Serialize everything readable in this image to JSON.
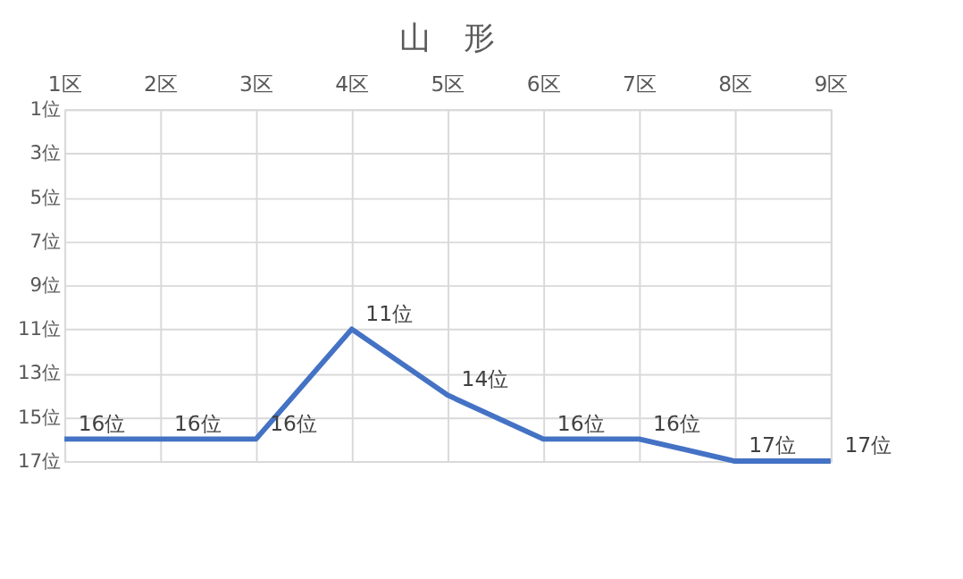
{
  "chart_data": {
    "type": "line",
    "title": "山　形",
    "categories": [
      "1区",
      "2区",
      "3区",
      "4区",
      "5区",
      "6区",
      "7区",
      "8区",
      "9区"
    ],
    "series": [
      {
        "color": "#4472c4",
        "values": [
          16,
          16,
          16,
          11,
          14,
          16,
          16,
          17,
          17
        ],
        "value_labels": [
          "16位",
          "16位",
          "16位",
          "11位",
          "14位",
          "16位",
          "16位",
          "17位",
          "17位"
        ]
      }
    ],
    "ylim": [
      17,
      1
    ],
    "yticks": [
      {
        "value": 1,
        "label": "1位"
      },
      {
        "value": 3,
        "label": "3位"
      },
      {
        "value": 5,
        "label": "5位"
      },
      {
        "value": 7,
        "label": "7位"
      },
      {
        "value": 9,
        "label": "9位"
      },
      {
        "value": 11,
        "label": "11位"
      },
      {
        "value": 13,
        "label": "13位"
      },
      {
        "value": 15,
        "label": "15位"
      },
      {
        "value": 17,
        "label": "17位"
      }
    ],
    "grid": true,
    "marker": "none",
    "line_style": "solid"
  }
}
